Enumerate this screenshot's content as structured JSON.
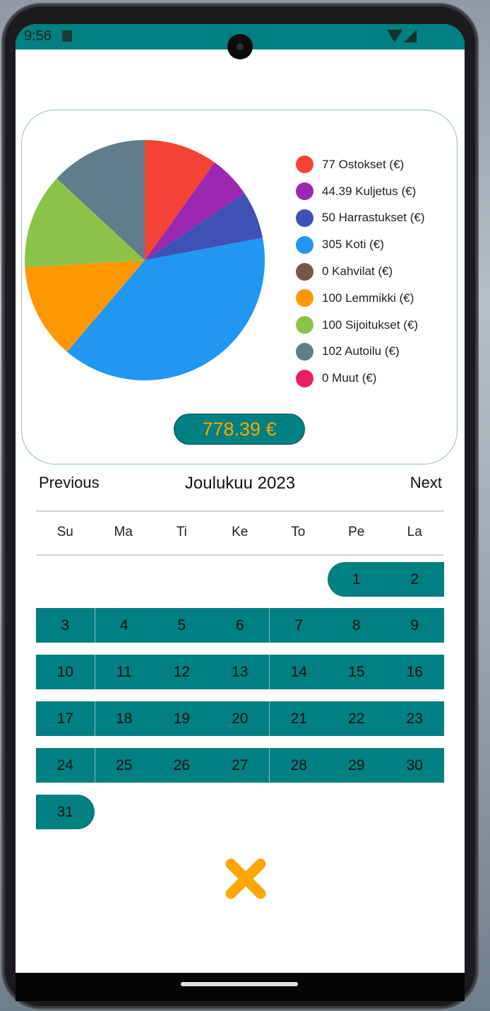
{
  "status_bar": {
    "time": "9:56",
    "notification_icon": "android-notification-icon",
    "wifi_icon": "wifi-icon",
    "signal_icon": "cell-signal-icon"
  },
  "chart_data": {
    "type": "pie",
    "slices": [
      {
        "label": "77 Ostokset (€)",
        "value": 77,
        "color": "#F44336"
      },
      {
        "label": "44.39 Kuljetus (€)",
        "value": 44.39,
        "color": "#9C27B0"
      },
      {
        "label": "50 Harrastukset (€)",
        "value": 50,
        "color": "#3F51B5"
      },
      {
        "label": "305 Koti (€)",
        "value": 305,
        "color": "#2196F3"
      },
      {
        "label": "0 Kahvilat (€)",
        "value": 0,
        "color": "#795548"
      },
      {
        "label": "100 Lemmikki (€)",
        "value": 100,
        "color": "#FF9800"
      },
      {
        "label": "100 Sijoitukset (€)",
        "value": 100,
        "color": "#8BC34A"
      },
      {
        "label": "102 Autoilu (€)",
        "value": 102,
        "color": "#607D8B"
      },
      {
        "label": "0 Muut (€)",
        "value": 0,
        "color": "#E91E63"
      }
    ],
    "legend_position": "right"
  },
  "total": "778.39 €",
  "calendar": {
    "previous_label": "Previous",
    "month_title": "Joulukuu 2023",
    "next_label": "Next",
    "weekdays": [
      "Su",
      "Ma",
      "Ti",
      "Ke",
      "To",
      "Pe",
      "La"
    ],
    "days": [
      "1",
      "2",
      "3",
      "4",
      "5",
      "6",
      "7",
      "8",
      "9",
      "10",
      "11",
      "12",
      "13",
      "14",
      "15",
      "16",
      "17",
      "18",
      "19",
      "20",
      "21",
      "22",
      "23",
      "24",
      "25",
      "26",
      "27",
      "28",
      "29",
      "30",
      "31"
    ],
    "first_weekday_index": 5,
    "selected_range": "1-31",
    "accent_color": "#008080"
  },
  "close_button_icon": "close-x-icon",
  "colors": {
    "accent": "#008080",
    "total_text": "#FFA500",
    "close_icon": "#FFA500"
  }
}
